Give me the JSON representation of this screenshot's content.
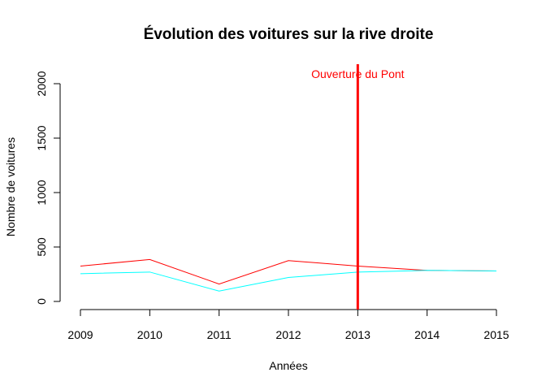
{
  "chart_data": {
    "type": "line",
    "title": "Évolution des voitures sur la rive droite",
    "xlabel": "Années",
    "ylabel": "Nombre de voitures",
    "xlim": [
      2009,
      2015
    ],
    "ylim": [
      0,
      2000
    ],
    "x": [
      2009,
      2010,
      2011,
      2012,
      2013,
      2014,
      2015
    ],
    "x_ticks": [
      "2009",
      "2010",
      "2011",
      "2012",
      "2013",
      "2014",
      "2015"
    ],
    "y_ticks": [
      "0",
      "500",
      "1000",
      "1500",
      "2000"
    ],
    "y_tick_values": [
      0,
      500,
      1000,
      1500,
      2000
    ],
    "grid": false,
    "legend": "none",
    "series": [
      {
        "color": "#ff0000",
        "values": [
          325,
          385,
          160,
          375,
          325,
          285,
          280
        ]
      },
      {
        "color": "#00ffff",
        "values": [
          255,
          270,
          95,
          220,
          270,
          285,
          280
        ]
      }
    ],
    "annotations": [
      {
        "type": "vline",
        "x": 2013,
        "color": "#ff0000",
        "text": "Ouverture du Pont"
      }
    ]
  }
}
